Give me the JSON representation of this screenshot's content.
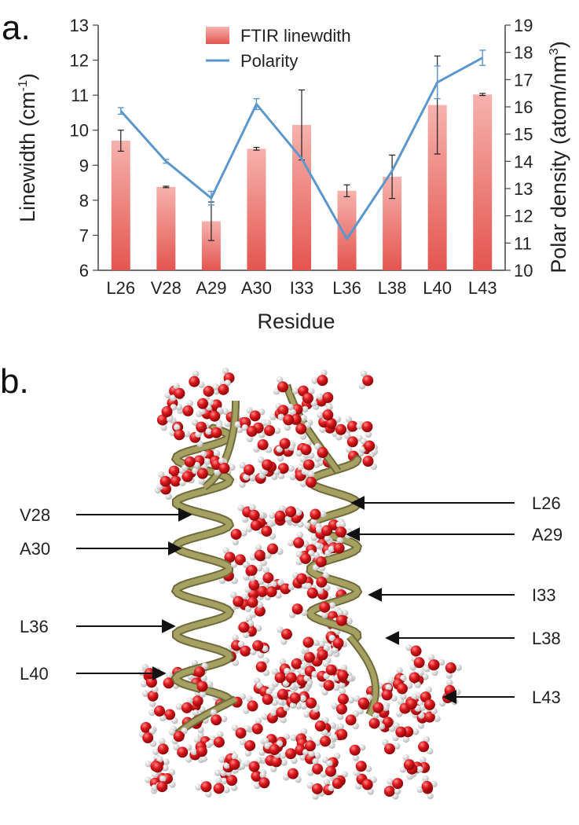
{
  "chart_data": {
    "type": "bar",
    "panel_label": "a.",
    "categories": [
      "L26",
      "V28",
      "A29",
      "A30",
      "I33",
      "L36",
      "L38",
      "L40",
      "L43"
    ],
    "xlabel": "Residue",
    "ylabel_left": "Linewidth (cm",
    "ylabel_left_sup": "-1",
    "ylabel_left_close": ")",
    "ylabel_right": "Polar density (atom/nm",
    "ylabel_right_sup": "3",
    "ylabel_right_close": ")",
    "ylim_left": [
      6,
      13
    ],
    "yticks_left": [
      6,
      7,
      8,
      9,
      10,
      11,
      12,
      13
    ],
    "ylim_right": [
      10,
      19
    ],
    "yticks_right": [
      10,
      11,
      12,
      13,
      14,
      15,
      16,
      17,
      18,
      19
    ],
    "legend_position": "top-center",
    "series": [
      {
        "name": "FTIR linewdith",
        "kind": "bar",
        "axis": "left",
        "color": "#e8605a",
        "values": [
          9.7,
          8.38,
          7.4,
          9.47,
          10.15,
          8.27,
          8.67,
          10.72,
          11.02
        ],
        "errors": [
          0.3,
          0.02,
          0.55,
          0.04,
          1.0,
          0.17,
          0.62,
          1.4,
          0.03
        ]
      },
      {
        "name": "Polarity",
        "kind": "line",
        "axis": "right",
        "color": "#5b97cc",
        "values": [
          15.85,
          14.0,
          12.65,
          16.1,
          14.1,
          11.15,
          13.65,
          16.9,
          17.8
        ],
        "errors": [
          0.12,
          0.07,
          0.25,
          0.2,
          0.0,
          0.0,
          0.0,
          0.6,
          0.28
        ]
      }
    ]
  },
  "figure_b": {
    "panel_label": "b.",
    "left_labels": [
      "V28",
      "A30",
      "L36",
      "L40"
    ],
    "right_labels": [
      "L26",
      "A29",
      "I33",
      "L38",
      "L43"
    ],
    "colors": {
      "helix": "#a6a063",
      "helix_dark": "#6e6a3a",
      "oxygen": "#d8141a",
      "hydrogen": "#eeeeee"
    }
  }
}
